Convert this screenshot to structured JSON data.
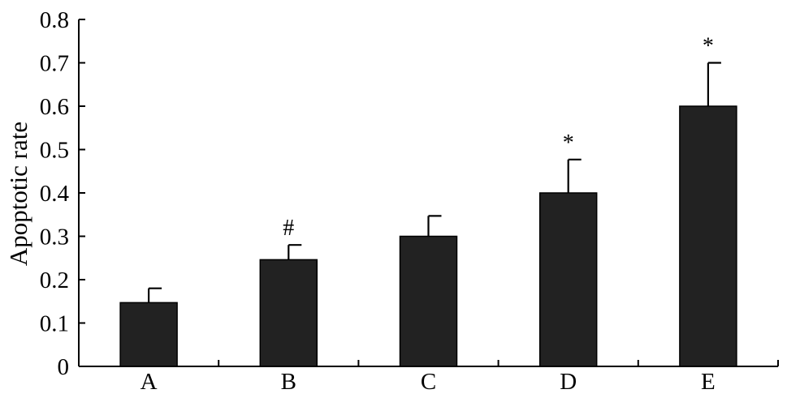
{
  "chart_data": {
    "type": "bar",
    "title": "",
    "xlabel": "",
    "ylabel": "Apoptotic rate",
    "ylim": [
      0,
      0.8
    ],
    "yticks": [
      "0",
      "0.1",
      "0.2",
      "0.3",
      "0.4",
      "0.5",
      "0.6",
      "0.7",
      "0.8"
    ],
    "categories": [
      "A",
      "B",
      "C",
      "D",
      "E"
    ],
    "values": [
      0.147,
      0.246,
      0.3,
      0.4,
      0.6
    ],
    "errors": [
      0.033,
      0.034,
      0.047,
      0.077,
      0.1
    ],
    "annotations": [
      "",
      "#",
      "",
      "*",
      "*"
    ],
    "grid": false,
    "bar_color": "#222222"
  }
}
